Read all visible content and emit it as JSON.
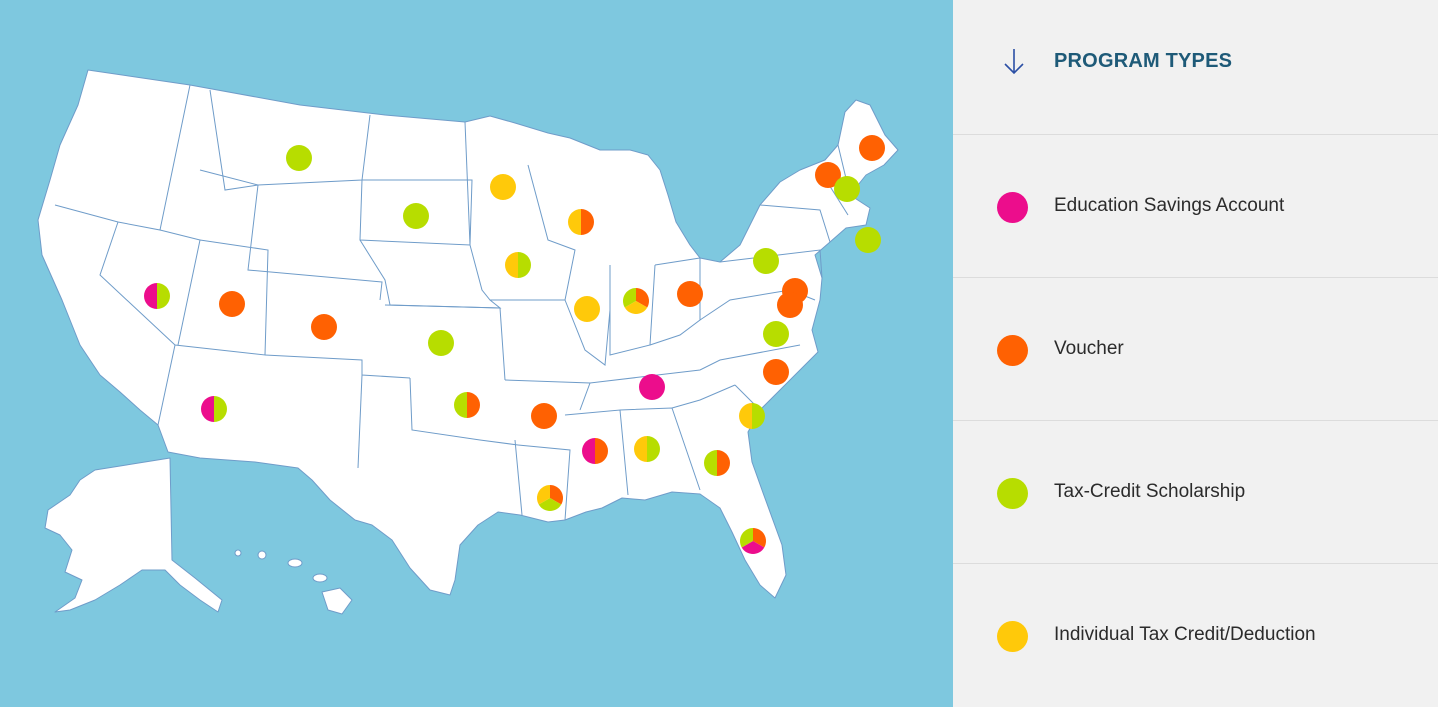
{
  "legend": {
    "title": "PROGRAM TYPES",
    "items": [
      {
        "label": "Education Savings Account",
        "color": "#ec0d8c",
        "key": "esa"
      },
      {
        "label": "Voucher",
        "color": "#ff6102",
        "key": "voucher"
      },
      {
        "label": "Tax-Credit Scholarship",
        "color": "#b7dd00",
        "key": "tcs"
      },
      {
        "label": "Individual Tax Credit/Deduction",
        "color": "#ffc90a",
        "key": "itc"
      }
    ]
  },
  "colors": {
    "ocean": "#7ec8df",
    "land": "#ffffff",
    "border": "#6f9cc9",
    "panel": "#f1f1f1",
    "title": "#1e5a78",
    "arrow": "#2b4fa5"
  },
  "states": [
    {
      "id": "MT",
      "programs": [
        "tcs"
      ]
    },
    {
      "id": "SD",
      "programs": [
        "tcs"
      ]
    },
    {
      "id": "MN",
      "programs": [
        "itc"
      ]
    },
    {
      "id": "WI",
      "programs": [
        "voucher",
        "itc"
      ]
    },
    {
      "id": "IA",
      "programs": [
        "tcs",
        "itc"
      ]
    },
    {
      "id": "NV",
      "programs": [
        "tcs",
        "esa"
      ]
    },
    {
      "id": "UT",
      "programs": [
        "voucher"
      ]
    },
    {
      "id": "CO",
      "programs": [
        "voucher"
      ]
    },
    {
      "id": "KS",
      "programs": [
        "tcs"
      ]
    },
    {
      "id": "IL",
      "programs": [
        "itc"
      ]
    },
    {
      "id": "IN",
      "programs": [
        "voucher",
        "itc",
        "tcs"
      ]
    },
    {
      "id": "OH",
      "programs": [
        "voucher"
      ]
    },
    {
      "id": "PA",
      "programs": [
        "tcs"
      ]
    },
    {
      "id": "NY",
      "programs": [
        "voucher"
      ]
    },
    {
      "id": "ME",
      "programs": [
        "voucher"
      ]
    },
    {
      "id": "NH",
      "programs": [
        "tcs"
      ]
    },
    {
      "id": "RI",
      "programs": [
        "tcs"
      ]
    },
    {
      "id": "MD",
      "programs": [
        "voucher"
      ]
    },
    {
      "id": "DC",
      "programs": [
        "voucher"
      ]
    },
    {
      "id": "VA",
      "programs": [
        "tcs"
      ]
    },
    {
      "id": "NC",
      "programs": [
        "voucher"
      ]
    },
    {
      "id": "TN",
      "programs": [
        "esa"
      ]
    },
    {
      "id": "AZ",
      "programs": [
        "tcs",
        "esa"
      ]
    },
    {
      "id": "OK",
      "programs": [
        "voucher",
        "tcs"
      ]
    },
    {
      "id": "AR",
      "programs": [
        "voucher"
      ]
    },
    {
      "id": "MS",
      "programs": [
        "voucher",
        "esa"
      ]
    },
    {
      "id": "AL",
      "programs": [
        "tcs",
        "itc"
      ]
    },
    {
      "id": "GA",
      "programs": [
        "voucher",
        "tcs"
      ]
    },
    {
      "id": "SC",
      "programs": [
        "tcs",
        "itc"
      ]
    },
    {
      "id": "LA",
      "programs": [
        "voucher",
        "tcs",
        "itc"
      ]
    },
    {
      "id": "FL",
      "programs": [
        "voucher",
        "esa",
        "tcs"
      ]
    }
  ]
}
